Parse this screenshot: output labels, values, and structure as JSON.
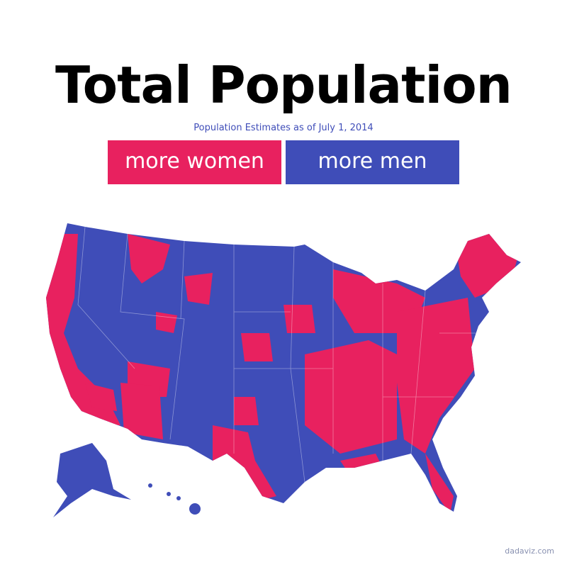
{
  "header": {
    "title": "Total Population",
    "subtitle": "Population Estimates as of July 1, 2014"
  },
  "legend": [
    {
      "label": "more women",
      "color": "#e8215f"
    },
    {
      "label": "more men",
      "color": "#3f4db8"
    }
  ],
  "footer": {
    "credit": "dadaviz.com"
  }
}
